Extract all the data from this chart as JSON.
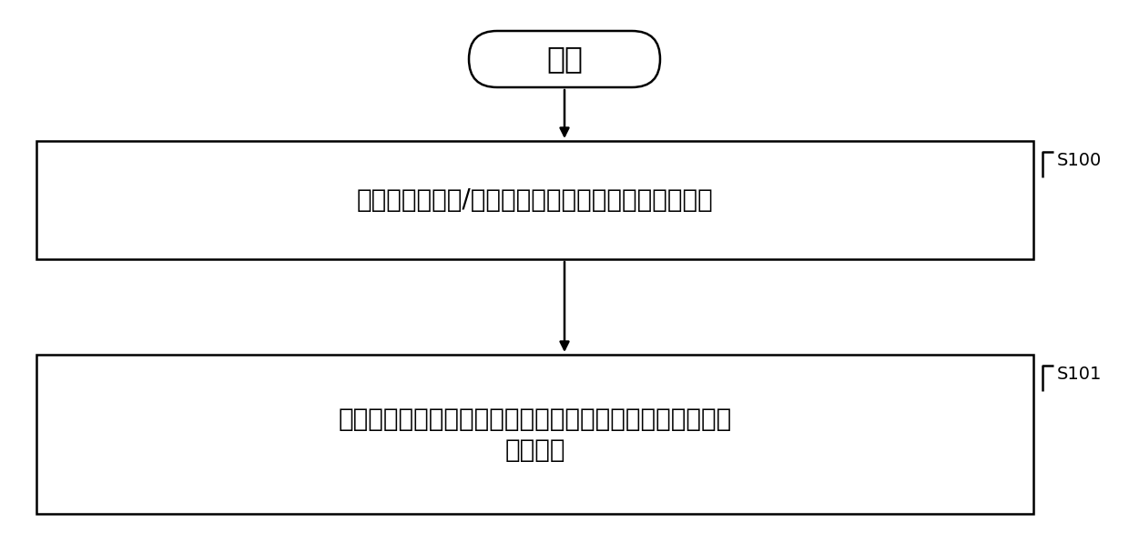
{
  "bg_color": "#ffffff",
  "start_label": "开始",
  "box1_label": "获取用于校准数/模转换器增益的控制信号的取值范围",
  "box2_line1": "利用二分法处理所述取值范围并从中确定所述控制信号的校",
  "box2_line2": "准输出值",
  "step1_label": "S100",
  "step2_label": "S101",
  "font_size_chinese": 20,
  "font_size_start": 24,
  "font_size_step": 14,
  "arrow_color": "#000000",
  "box_edge_color": "#000000",
  "text_color": "#000000",
  "lw": 1.8
}
